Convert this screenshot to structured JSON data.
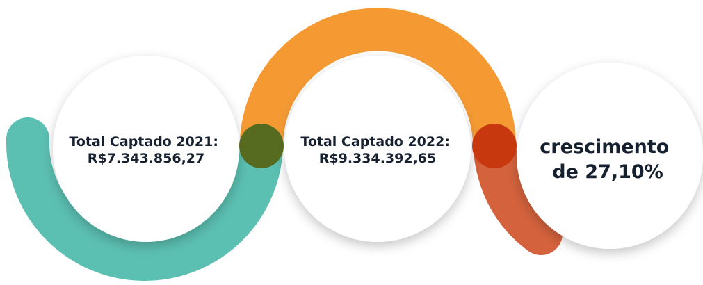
{
  "items": [
    {
      "lines": [
        "Total Captado 2021:",
        "R$7.343.856,27"
      ]
    },
    {
      "lines": [
        "Total Captado 2022:",
        "R$9.334.392,65"
      ]
    },
    {
      "lines": [
        "crescimento",
        "de 27,10%"
      ]
    }
  ]
}
